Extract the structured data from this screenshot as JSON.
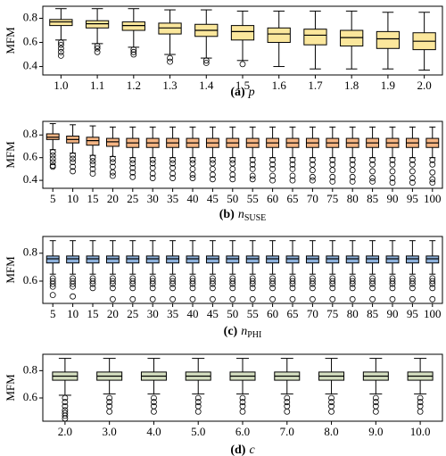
{
  "chart_data": [
    {
      "type": "box",
      "ylabel": "MFM",
      "caption": {
        "label": "(a)",
        "symbol": "p"
      },
      "color": "#fbe79c",
      "ylim": [
        0.33,
        0.9
      ],
      "yticks": [
        0.4,
        0.6,
        0.8
      ],
      "categories": [
        "1.0",
        "1.1",
        "1.2",
        "1.3",
        "1.4",
        "1.5",
        "1.6",
        "1.7",
        "1.8",
        "1.9",
        "2.0"
      ],
      "boxes": [
        [
          0.62,
          0.74,
          0.77,
          0.79,
          0.88
        ],
        [
          0.59,
          0.72,
          0.755,
          0.78,
          0.88
        ],
        [
          0.56,
          0.7,
          0.74,
          0.77,
          0.88
        ],
        [
          0.5,
          0.67,
          0.72,
          0.76,
          0.87
        ],
        [
          0.47,
          0.65,
          0.7,
          0.75,
          0.87
        ],
        [
          0.45,
          0.62,
          0.69,
          0.74,
          0.86
        ],
        [
          0.4,
          0.6,
          0.67,
          0.72,
          0.86
        ],
        [
          0.38,
          0.58,
          0.66,
          0.71,
          0.86
        ],
        [
          0.38,
          0.57,
          0.64,
          0.7,
          0.86
        ],
        [
          0.38,
          0.55,
          0.63,
          0.69,
          0.85
        ],
        [
          0.37,
          0.54,
          0.61,
          0.68,
          0.85
        ]
      ],
      "outliers": [
        [
          0.6,
          0.58,
          0.55,
          0.52,
          0.49
        ],
        [
          0.57,
          0.55,
          0.52
        ],
        [
          0.54,
          0.52,
          0.5
        ],
        [
          0.47,
          0.44
        ],
        [
          0.45,
          0.43
        ],
        [
          0.42
        ],
        [],
        [],
        [],
        [],
        []
      ]
    },
    {
      "type": "box",
      "ylabel": "MFM",
      "caption": {
        "label": "(b)",
        "symbol": "n",
        "subscript": "SUSE"
      },
      "color": "#f5b584",
      "ylim": [
        0.33,
        0.92
      ],
      "yticks": [
        0.4,
        0.6,
        0.8
      ],
      "categories": [
        "5",
        "10",
        "15",
        "20",
        "25",
        "30",
        "35",
        "40",
        "45",
        "50",
        "55",
        "60",
        "65",
        "70",
        "75",
        "80",
        "85",
        "90",
        "95",
        "100"
      ],
      "boxes": [
        [
          0.67,
          0.76,
          0.78,
          0.81,
          0.9
        ],
        [
          0.64,
          0.73,
          0.76,
          0.79,
          0.89
        ],
        [
          0.62,
          0.71,
          0.75,
          0.78,
          0.88
        ],
        [
          0.61,
          0.7,
          0.74,
          0.77,
          0.87
        ],
        [
          0.6,
          0.69,
          0.73,
          0.77,
          0.87
        ],
        [
          0.6,
          0.69,
          0.73,
          0.77,
          0.87
        ],
        [
          0.6,
          0.69,
          0.73,
          0.77,
          0.87
        ],
        [
          0.6,
          0.69,
          0.73,
          0.77,
          0.87
        ],
        [
          0.6,
          0.69,
          0.73,
          0.77,
          0.87
        ],
        [
          0.6,
          0.69,
          0.73,
          0.77,
          0.87
        ],
        [
          0.6,
          0.69,
          0.73,
          0.77,
          0.87
        ],
        [
          0.6,
          0.69,
          0.73,
          0.77,
          0.87
        ],
        [
          0.6,
          0.69,
          0.73,
          0.77,
          0.87
        ],
        [
          0.6,
          0.69,
          0.73,
          0.77,
          0.87
        ],
        [
          0.6,
          0.69,
          0.73,
          0.77,
          0.87
        ],
        [
          0.6,
          0.69,
          0.73,
          0.77,
          0.87
        ],
        [
          0.6,
          0.69,
          0.73,
          0.77,
          0.87
        ],
        [
          0.6,
          0.69,
          0.73,
          0.77,
          0.87
        ],
        [
          0.6,
          0.69,
          0.73,
          0.77,
          0.87
        ],
        [
          0.6,
          0.69,
          0.73,
          0.77,
          0.87
        ]
      ],
      "outliers": [
        [
          0.65,
          0.62,
          0.59,
          0.56,
          0.53,
          0.52
        ],
        [
          0.62,
          0.59,
          0.56,
          0.52,
          0.48
        ],
        [
          0.6,
          0.57,
          0.54,
          0.5,
          0.46
        ],
        [
          0.59,
          0.56,
          0.52,
          0.47,
          0.44
        ],
        [
          0.58,
          0.55,
          0.51,
          0.47,
          0.43
        ],
        [
          0.58,
          0.55,
          0.51,
          0.46,
          0.42
        ],
        [
          0.58,
          0.55,
          0.51,
          0.46,
          0.42
        ],
        [
          0.58,
          0.55,
          0.5,
          0.45,
          0.42
        ],
        [
          0.58,
          0.55,
          0.5,
          0.45,
          0.41
        ],
        [
          0.58,
          0.55,
          0.5,
          0.45,
          0.41
        ],
        [
          0.58,
          0.54,
          0.5,
          0.44,
          0.41
        ],
        [
          0.58,
          0.54,
          0.5,
          0.44,
          0.4
        ],
        [
          0.58,
          0.54,
          0.5,
          0.44,
          0.4
        ],
        [
          0.58,
          0.54,
          0.49,
          0.43,
          0.4
        ],
        [
          0.58,
          0.54,
          0.49,
          0.43,
          0.39
        ],
        [
          0.58,
          0.54,
          0.49,
          0.43,
          0.39
        ],
        [
          0.58,
          0.54,
          0.48,
          0.42,
          0.39
        ],
        [
          0.58,
          0.54,
          0.48,
          0.42,
          0.38
        ],
        [
          0.58,
          0.54,
          0.48,
          0.42,
          0.38
        ],
        [
          0.58,
          0.54,
          0.47,
          0.41,
          0.38
        ]
      ]
    },
    {
      "type": "box",
      "ylabel": "MFM",
      "caption": {
        "label": "(c)",
        "symbol": "n",
        "subscript": "PHI"
      },
      "color": "#8db0da",
      "ylim": [
        0.44,
        0.92
      ],
      "yticks": [
        0.6,
        0.8
      ],
      "categories": [
        "5",
        "10",
        "15",
        "20",
        "25",
        "30",
        "35",
        "40",
        "45",
        "50",
        "55",
        "60",
        "65",
        "70",
        "75",
        "80",
        "85",
        "90",
        "95",
        "100"
      ],
      "boxes": [
        [
          0.65,
          0.73,
          0.76,
          0.78,
          0.89
        ],
        [
          0.65,
          0.73,
          0.76,
          0.78,
          0.89
        ],
        [
          0.65,
          0.73,
          0.76,
          0.78,
          0.89
        ],
        [
          0.65,
          0.73,
          0.76,
          0.78,
          0.89
        ],
        [
          0.65,
          0.73,
          0.76,
          0.78,
          0.89
        ],
        [
          0.65,
          0.73,
          0.76,
          0.78,
          0.89
        ],
        [
          0.65,
          0.73,
          0.76,
          0.78,
          0.89
        ],
        [
          0.65,
          0.73,
          0.76,
          0.78,
          0.89
        ],
        [
          0.65,
          0.73,
          0.76,
          0.78,
          0.89
        ],
        [
          0.65,
          0.73,
          0.76,
          0.78,
          0.89
        ],
        [
          0.65,
          0.73,
          0.76,
          0.78,
          0.89
        ],
        [
          0.65,
          0.73,
          0.76,
          0.78,
          0.89
        ],
        [
          0.65,
          0.73,
          0.76,
          0.78,
          0.89
        ],
        [
          0.65,
          0.73,
          0.76,
          0.78,
          0.89
        ],
        [
          0.65,
          0.73,
          0.76,
          0.78,
          0.89
        ],
        [
          0.65,
          0.73,
          0.76,
          0.78,
          0.89
        ],
        [
          0.65,
          0.73,
          0.76,
          0.78,
          0.89
        ],
        [
          0.65,
          0.73,
          0.76,
          0.78,
          0.89
        ],
        [
          0.65,
          0.73,
          0.76,
          0.78,
          0.89
        ],
        [
          0.65,
          0.73,
          0.76,
          0.78,
          0.89
        ]
      ],
      "outliers": [
        [
          0.62,
          0.6,
          0.58,
          0.56,
          0.5
        ],
        [
          0.62,
          0.6,
          0.58,
          0.56,
          0.49
        ],
        [
          0.62,
          0.6,
          0.58,
          0.55
        ],
        [
          0.62,
          0.6,
          0.58,
          0.55,
          0.47
        ],
        [
          0.62,
          0.6,
          0.58,
          0.55,
          0.47
        ],
        [
          0.62,
          0.6,
          0.58,
          0.55,
          0.47
        ],
        [
          0.62,
          0.6,
          0.58,
          0.55,
          0.47
        ],
        [
          0.62,
          0.6,
          0.58,
          0.55,
          0.47
        ],
        [
          0.62,
          0.6,
          0.58,
          0.55,
          0.47
        ],
        [
          0.62,
          0.6,
          0.58,
          0.55,
          0.47
        ],
        [
          0.62,
          0.6,
          0.58,
          0.55,
          0.47
        ],
        [
          0.62,
          0.6,
          0.58,
          0.55,
          0.47
        ],
        [
          0.62,
          0.6,
          0.58,
          0.55,
          0.47
        ],
        [
          0.62,
          0.6,
          0.58,
          0.55,
          0.47
        ],
        [
          0.62,
          0.6,
          0.58,
          0.55,
          0.47
        ],
        [
          0.62,
          0.6,
          0.58,
          0.55,
          0.47
        ],
        [
          0.62,
          0.6,
          0.58,
          0.55,
          0.47
        ],
        [
          0.62,
          0.6,
          0.58,
          0.55,
          0.47
        ],
        [
          0.62,
          0.6,
          0.58,
          0.55,
          0.47
        ],
        [
          0.62,
          0.6,
          0.58,
          0.55,
          0.47
        ]
      ]
    },
    {
      "type": "box",
      "ylabel": "MFM",
      "caption": {
        "label": "(d)",
        "symbol": "c"
      },
      "color": "#d5dfc1",
      "ylim": [
        0.43,
        0.92
      ],
      "yticks": [
        0.6,
        0.8
      ],
      "categories": [
        "2.0",
        "3.0",
        "4.0",
        "5.0",
        "6.0",
        "7.0",
        "8.0",
        "9.0",
        "10.0"
      ],
      "boxes": [
        [
          0.62,
          0.73,
          0.76,
          0.79,
          0.89
        ],
        [
          0.63,
          0.73,
          0.76,
          0.79,
          0.89
        ],
        [
          0.63,
          0.73,
          0.76,
          0.79,
          0.89
        ],
        [
          0.63,
          0.73,
          0.76,
          0.79,
          0.89
        ],
        [
          0.63,
          0.73,
          0.76,
          0.79,
          0.89
        ],
        [
          0.63,
          0.73,
          0.76,
          0.79,
          0.89
        ],
        [
          0.63,
          0.73,
          0.76,
          0.79,
          0.89
        ],
        [
          0.63,
          0.73,
          0.76,
          0.79,
          0.89
        ],
        [
          0.63,
          0.73,
          0.76,
          0.79,
          0.89
        ]
      ],
      "outliers": [
        [
          0.6,
          0.57,
          0.54,
          0.51,
          0.49,
          0.47,
          0.45
        ],
        [
          0.6,
          0.57,
          0.54,
          0.5
        ],
        [
          0.6,
          0.57,
          0.54,
          0.5
        ],
        [
          0.6,
          0.57,
          0.54,
          0.5
        ],
        [
          0.6,
          0.57,
          0.54,
          0.5
        ],
        [
          0.6,
          0.57,
          0.54,
          0.5
        ],
        [
          0.6,
          0.57,
          0.54,
          0.5
        ],
        [
          0.6,
          0.57,
          0.54,
          0.5
        ],
        [
          0.6,
          0.57,
          0.54,
          0.5
        ]
      ]
    }
  ]
}
